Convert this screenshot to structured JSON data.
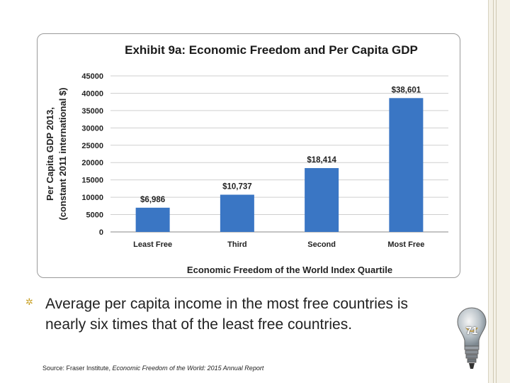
{
  "chart_data": {
    "type": "bar",
    "title": "Exhibit 9a: Economic Freedom and Per Capita GDP",
    "categories": [
      "Least Free",
      "Third",
      "Second",
      "Most Free"
    ],
    "values": [
      6986,
      10737,
      18414,
      38601
    ],
    "data_labels": [
      "$6,986",
      "$10,737",
      "$18,414",
      "$38,601"
    ],
    "ylabel_line1": "Per Capita GDP 2013,",
    "ylabel_line2": "(constant 2011 international $)",
    "xlabel": "Economic Freedom of the World Index Quartile",
    "ylim": [
      0,
      45000
    ],
    "yticks": [
      0,
      5000,
      10000,
      15000,
      20000,
      25000,
      30000,
      35000,
      40000,
      45000
    ],
    "grid": true,
    "bar_color": "#3a76c4"
  },
  "bullet": {
    "icon": "sun-bullet-icon",
    "text": "Average per capita income in the most free countries is nearly six times that of the least free countries."
  },
  "source": {
    "prefix": "Source: Fraser Institute, ",
    "title": "Economic Freedom of the World: 2015 Annual Report"
  },
  "slide": {
    "number": "71"
  }
}
